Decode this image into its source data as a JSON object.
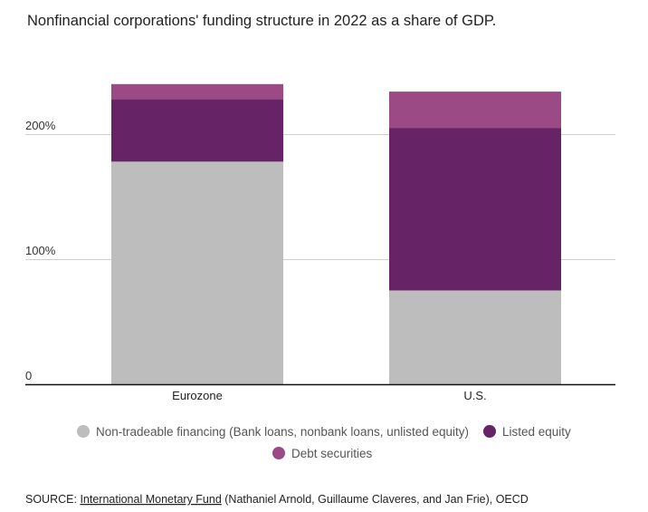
{
  "title": "Nonfinancial corporations' funding structure in 2022 as a share of GDP.",
  "chart_data": {
    "type": "bar",
    "stacked": true,
    "categories": [
      "Eurozone",
      "U.S."
    ],
    "series": [
      {
        "name": "Non-tradeable financing (Bank loans, nonbank loans, unlisted equity)",
        "color": "#bdbdbd",
        "values": [
          178,
          75
        ]
      },
      {
        "name": "Listed equity",
        "color": "#662466",
        "values": [
          50,
          130
        ]
      },
      {
        "name": "Debt securities",
        "color": "#9c4a86",
        "values": [
          12,
          29
        ]
      }
    ],
    "yticks": [
      {
        "value": 0,
        "label": "0"
      },
      {
        "value": 100,
        "label": "100%"
      },
      {
        "value": 200,
        "label": "200%"
      }
    ],
    "ylim": [
      0,
      260
    ],
    "grid": true,
    "legend_placement": "bottom"
  },
  "source": {
    "prefix": "SOURCE: ",
    "link_text": "International Monetary Fund",
    "suffix": " (Nathaniel Arnold, Guillaume Claveres, and Jan Frie), OECD"
  }
}
